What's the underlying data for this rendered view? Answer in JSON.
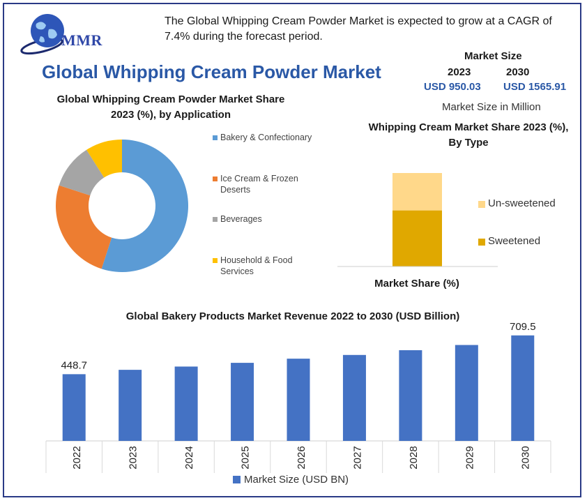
{
  "logo": {
    "text": "MMR"
  },
  "headline": "The Global Whipping Cream Powder Market is expected to grow at a CAGR of 7.4% during the forecast period.",
  "main_title": "Global Whipping Cream Powder Market",
  "market_size": {
    "label": "Market Size",
    "years": [
      "2023",
      "2030"
    ],
    "values": [
      "USD 950.03",
      "USD 1565.91"
    ],
    "unit": "Market Size in Million"
  },
  "chart_data": [
    {
      "type": "pie",
      "title": "Global Whipping Cream Powder Market Share 2023 (%), by Application",
      "labels": [
        "Bakery & Confectionary",
        "Ice Cream & Frozen Deserts",
        "Beverages",
        "Household & Food Services"
      ],
      "values": [
        55,
        25,
        11,
        9
      ],
      "colors": [
        "#5b9bd5",
        "#ed7d31",
        "#a5a5a5",
        "#ffc000"
      ],
      "legend_position": "right"
    },
    {
      "type": "bar",
      "stacked": true,
      "title": "Whipping Cream Market Share 2023 (%), By Type",
      "xlabel": "Market Share (%)",
      "categories": [
        ""
      ],
      "series": [
        {
          "name": "Sweetened",
          "values": [
            60
          ],
          "color": "#e0a800"
        },
        {
          "name": "Un-sweetened",
          "values": [
            40
          ],
          "color": "#ffd88a"
        }
      ],
      "legend_order": [
        "Un-sweetened",
        "Sweetened"
      ],
      "ylim": [
        0,
        100
      ],
      "legend_position": "right"
    },
    {
      "type": "bar",
      "title": "Global Bakery Products Market Revenue 2022 to 2030 (USD Billion)",
      "categories": [
        "2022",
        "2023",
        "2024",
        "2025",
        "2026",
        "2027",
        "2028",
        "2029",
        "2030"
      ],
      "series": [
        {
          "name": "Market Size (USD BN)",
          "values": [
            448.7,
            478.0,
            500.0,
            525.0,
            553.0,
            578.0,
            610.0,
            645.0,
            709.5
          ],
          "color": "#4472c4"
        }
      ],
      "data_labels": {
        "2022": "448.7",
        "2030": "709.5"
      },
      "ylim": [
        0,
        760
      ],
      "legend_position": "bottom"
    }
  ]
}
